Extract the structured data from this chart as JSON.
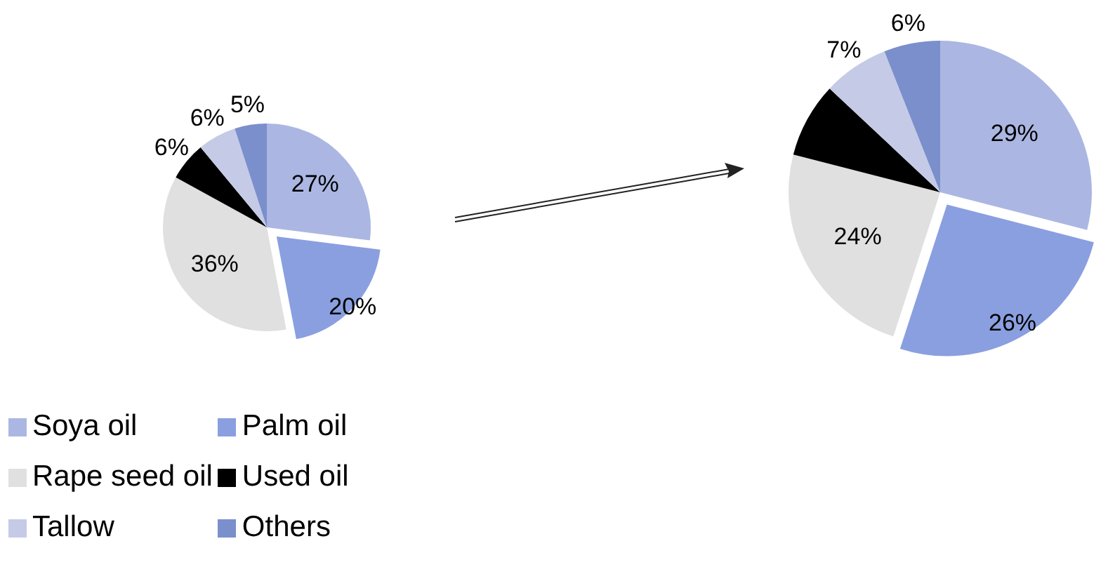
{
  "chart_data": [
    {
      "type": "pie",
      "categories": [
        "Soya oil",
        "Palm oil",
        "Rape seed oil",
        "Used oil",
        "Tallow",
        "Others"
      ],
      "values": [
        27,
        20,
        36,
        6,
        6,
        5
      ],
      "colors": [
        "#abb7e2",
        "#8a9fe0",
        "#e0e0e0",
        "#000000",
        "#c5cbe6",
        "#7a8fcc"
      ],
      "value_labels": [
        "27%",
        "20%",
        "36%",
        "6%",
        "6%",
        "5%"
      ],
      "legend": "bottom left"
    },
    {
      "type": "pie",
      "categories": [
        null,
        null,
        null,
        null,
        null,
        null
      ],
      "values": [
        29,
        26,
        24,
        8,
        7,
        6
      ],
      "colors": [
        "#abb7e2",
        "#8a9fe0",
        "#e0e0e0",
        "#000000",
        "#c5cbe6",
        "#7a8fcc"
      ],
      "value_labels": [
        "29%",
        "26%",
        "24%",
        null,
        "7%",
        "6%"
      ],
      "legend": false
    }
  ]
}
